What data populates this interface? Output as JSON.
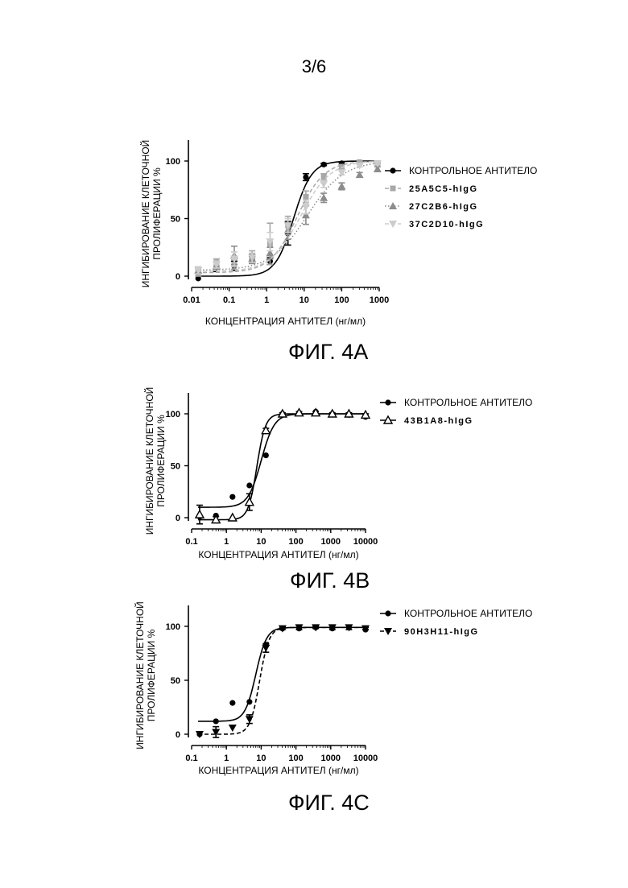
{
  "page": {
    "number": "3/6"
  },
  "legend_labels": {
    "control": "КОНТРОЛЬНОЕ АНТИТЕЛО",
    "a1": "25A5C5-hIgG",
    "a2": "27C2B6-hIgG",
    "a3": "37C2D10-hIgG",
    "b1": "43B1A8-hIgG",
    "c1": "90H3H11-hIgG"
  },
  "chart_data": [
    {
      "id": "fig4a",
      "caption": "ФИГ. 4А",
      "type": "scatter",
      "xscale": "log",
      "xlim": [
        0.01,
        1000
      ],
      "ylim": [
        0,
        100
      ],
      "xticks": [
        0.01,
        0.1,
        1,
        10,
        100,
        1000
      ],
      "xtick_labels": [
        "0.01",
        "0.1",
        "1",
        "10",
        "100",
        "1000"
      ],
      "yticks": [
        0,
        50,
        100
      ],
      "ytick_labels": [
        "0",
        "50",
        "100"
      ],
      "xlabel": "КОНЦЕНТРАЦИЯ АНТИТЕЛ (нг/мл)",
      "ylabel": [
        "ИНГИБИРОВАНИЕ КЛЕТОЧНОЙ",
        "ПРОЛИФЕРАЦИИ %"
      ],
      "legend_position": "right",
      "series": [
        {
          "name": "КОНТРОЛЬНОЕ АНТИТЕЛО",
          "marker": "circle",
          "color": "#000000",
          "line": "solid",
          "x": [
            0.015,
            0.046,
            0.137,
            0.41,
            1.23,
            3.7,
            11.1,
            33.3,
            100,
            300,
            900
          ],
          "y": [
            -2,
            8,
            9,
            14,
            13,
            37,
            86,
            97,
            98,
            99,
            98
          ],
          "err": [
            0,
            4,
            4,
            3,
            3,
            10,
            3,
            1,
            1,
            1,
            1
          ],
          "fit": {
            "bottom": 0,
            "top": 100,
            "ec50": 5.2,
            "hill": 1.8
          }
        },
        {
          "name": "25A5C5-hIgG",
          "marker": "square",
          "color": "#a8a8a8",
          "line": "dashed",
          "x": [
            0.015,
            0.046,
            0.137,
            0.41,
            1.23,
            3.7,
            11.1,
            33.3,
            100,
            300,
            900
          ],
          "y": [
            3,
            12,
            10,
            18,
            28,
            44,
            69,
            86,
            95,
            99,
            98
          ],
          "err": [
            3,
            3,
            4,
            4,
            18,
            8,
            5,
            3,
            2,
            1,
            1
          ],
          "fit": {
            "bottom": 3,
            "top": 100,
            "ec50": 6.5,
            "hill": 1.2
          }
        },
        {
          "name": "27C2B6-hIgG",
          "marker": "triangle-up",
          "color": "#8c8c8c",
          "line": "dotted",
          "x": [
            0.015,
            0.046,
            0.137,
            0.41,
            1.23,
            3.7,
            11.1,
            33.3,
            100,
            300,
            900
          ],
          "y": [
            5,
            9,
            18,
            15,
            20,
            40,
            53,
            68,
            78,
            88,
            93
          ],
          "err": [
            3,
            3,
            8,
            4,
            5,
            8,
            8,
            4,
            3,
            2,
            2
          ],
          "fit": {
            "bottom": 5,
            "top": 100,
            "ec50": 12,
            "hill": 0.9
          }
        },
        {
          "name": "37C2D10-hIgG",
          "marker": "triangle-down",
          "color": "#cccccc",
          "line": "dashed",
          "x": [
            0.015,
            0.046,
            0.137,
            0.41,
            1.23,
            3.7,
            11.1,
            33.3,
            100,
            300,
            900
          ],
          "y": [
            5,
            10,
            15,
            16,
            30,
            44,
            60,
            80,
            90,
            96,
            98
          ],
          "err": [
            3,
            3,
            6,
            4,
            8,
            6,
            6,
            3,
            2,
            1,
            1
          ],
          "fit": {
            "bottom": 4,
            "top": 100,
            "ec50": 8,
            "hill": 1.1
          }
        }
      ]
    },
    {
      "id": "fig4b",
      "caption": "ФИГ. 4В",
      "type": "scatter",
      "xscale": "log",
      "xlim": [
        0.1,
        10000
      ],
      "ylim": [
        0,
        100
      ],
      "xticks": [
        0.1,
        1,
        10,
        100,
        1000,
        10000
      ],
      "xtick_labels": [
        "0.1",
        "1",
        "10",
        "100",
        "1000",
        "10000"
      ],
      "yticks": [
        0,
        50,
        100
      ],
      "ytick_labels": [
        "0",
        "50",
        "100"
      ],
      "xlabel": "КОНЦЕНТРАЦИЯ АНТИТЕЛ (нг/мл)",
      "ylabel": [
        "ИНГИБИРОВАНИЕ КЛЕТОЧНОЙ",
        "ПРОЛИФЕРАЦИИ %"
      ],
      "legend_position": "right",
      "series": [
        {
          "name": "КОНТРОЛЬНОЕ АНТИТЕЛО",
          "marker": "circle",
          "color": "#000000",
          "line": "solid",
          "x": [
            0.17,
            0.5,
            1.5,
            4.6,
            13.7,
            41,
            123,
            370,
            1111,
            3333,
            10000
          ],
          "y": [
            1,
            2,
            20,
            31,
            60,
            100,
            101,
            102,
            100,
            99,
            97
          ],
          "err": [
            0,
            0,
            0,
            0,
            0,
            0,
            0,
            0,
            0,
            0,
            0
          ],
          "fit": {
            "bottom": 10,
            "top": 100,
            "ec50": 10,
            "hill": 2.3
          }
        },
        {
          "name": "43B1A8-hIgG",
          "marker": "triangle-up-open",
          "color": "#000000",
          "line": "solid",
          "x": [
            0.17,
            0.5,
            1.5,
            4.6,
            13.7,
            41,
            123,
            370,
            1111,
            3333,
            10000
          ],
          "y": [
            3,
            -2,
            0,
            15,
            84,
            100,
            101,
            101,
            100,
            100,
            99
          ],
          "err": [
            9,
            3,
            0,
            8,
            2,
            1,
            1,
            1,
            1,
            1,
            1
          ],
          "fit": {
            "bottom": -2,
            "top": 100,
            "ec50": 7.5,
            "hill": 3.5
          }
        }
      ]
    },
    {
      "id": "fig4c",
      "caption": "ФИГ. 4С",
      "type": "scatter",
      "xscale": "log",
      "xlim": [
        0.1,
        10000
      ],
      "ylim": [
        0,
        100
      ],
      "xticks": [
        0.1,
        1,
        10,
        100,
        1000,
        10000
      ],
      "xtick_labels": [
        "0.1",
        "1",
        "10",
        "100",
        "1000",
        "10000"
      ],
      "yticks": [
        0,
        50,
        100
      ],
      "ytick_labels": [
        "0",
        "50",
        "100"
      ],
      "xlabel": "КОНЦЕНТРАЦИЯ АНТИТЕЛ (нг/мл)",
      "ylabel": [
        "ИНГИБИРОВАНИЕ КЛЕТОЧНОЙ",
        "ПРОЛИФЕРАЦИИ %"
      ],
      "legend_position": "right",
      "series": [
        {
          "name": "КОНТРОЛЬНОЕ АНТИТЕЛО",
          "marker": "circle",
          "color": "#000000",
          "line": "solid",
          "x": [
            0.17,
            0.5,
            1.5,
            4.6,
            13.7,
            41,
            123,
            370,
            1111,
            3333,
            10000
          ],
          "y": [
            0,
            12,
            29,
            30,
            83,
            98,
            98,
            99,
            98,
            99,
            97
          ],
          "err": [
            0,
            0,
            0,
            0,
            0,
            0,
            0,
            0,
            0,
            0,
            0
          ],
          "fit": {
            "bottom": 12,
            "top": 99,
            "ec50": 7,
            "hill": 2.8
          }
        },
        {
          "name": "90H3H11-hIgG",
          "marker": "triangle-down",
          "color": "#000000",
          "line": "dashed",
          "x": [
            0.17,
            0.5,
            1.5,
            4.6,
            13.7,
            41,
            123,
            370,
            1111,
            3333,
            10000
          ],
          "y": [
            0,
            2,
            6,
            14,
            80,
            98,
            99,
            99,
            99,
            99,
            98
          ],
          "err": [
            0,
            5,
            0,
            4,
            4,
            1,
            2,
            1,
            2,
            2,
            1
          ],
          "fit": {
            "bottom": 0,
            "top": 99,
            "ec50": 9,
            "hill": 3.2
          }
        }
      ]
    }
  ]
}
